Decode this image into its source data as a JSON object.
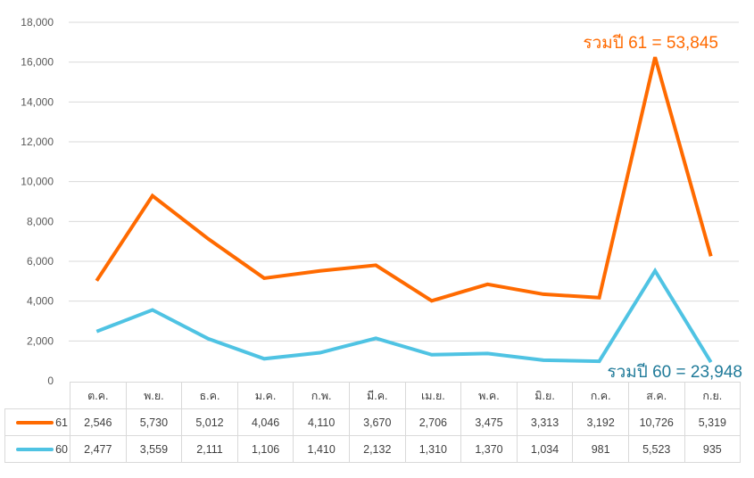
{
  "chart_data": {
    "type": "line",
    "stacked": true,
    "categories": [
      "ต.ค.",
      "พ.ย.",
      "ธ.ค.",
      "ม.ค.",
      "ก.พ.",
      "มี.ค.",
      "เม.ย.",
      "พ.ค.",
      "มิ.ย.",
      "ก.ค.",
      "ส.ค.",
      "ก.ย."
    ],
    "series": [
      {
        "name": "61",
        "color": "#ff6a00",
        "values": [
          2546,
          5730,
          5012,
          4046,
          4110,
          3670,
          2706,
          3475,
          3313,
          3192,
          10726,
          5319
        ]
      },
      {
        "name": "60",
        "color": "#4fc3e3",
        "values": [
          2477,
          3559,
          2111,
          1106,
          1410,
          2132,
          1310,
          1370,
          1034,
          981,
          5523,
          935
        ]
      }
    ],
    "ylim": [
      0,
      18000
    ],
    "yticks": [
      "0",
      "2,000",
      "4,000",
      "6,000",
      "8,000",
      "10,000",
      "12,000",
      "14,000",
      "16,000",
      "18,000"
    ],
    "grid": true,
    "legend": "data-table",
    "annotations": [
      {
        "text": "รวมปี 61 = 53,845",
        "color": "#ff6a00"
      },
      {
        "text": "รวมปี 60 = 23,948",
        "color": "#1f7a99"
      }
    ]
  }
}
